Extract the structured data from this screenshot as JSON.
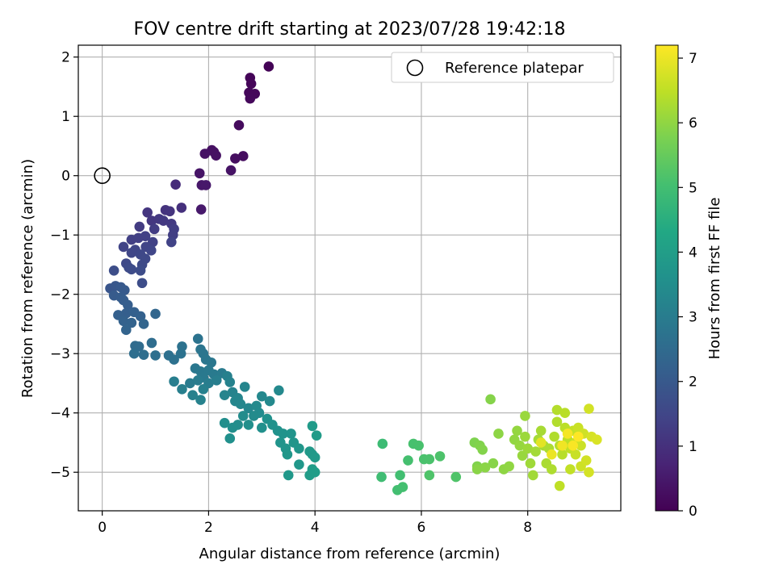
{
  "chart_data": {
    "type": "scatter",
    "title": "FOV centre drift starting at 2023/07/28 19:42:18",
    "xlabel": "Angular distance from reference (arcmin)",
    "ylabel": "Rotation from reference (arcmin)",
    "xlim": [
      -0.45,
      9.75
    ],
    "ylim": [
      -5.65,
      2.2
    ],
    "xticks": [
      0,
      2,
      4,
      6,
      8
    ],
    "yticks": [
      -5,
      -4,
      -3,
      -2,
      -1,
      0,
      1,
      2
    ],
    "grid": true,
    "legend": {
      "position": "top-right",
      "entries": [
        "Reference platepar"
      ]
    },
    "colorbar": {
      "label": "Hours from first FF file",
      "min": 0,
      "max": 7.2,
      "ticks": [
        0,
        1,
        2,
        3,
        4,
        5,
        6,
        7
      ],
      "colormap": "viridis"
    },
    "reference_point": {
      "x": 0,
      "y": 0,
      "label": "Reference platepar"
    },
    "series": [
      {
        "color_by": "hours",
        "points": [
          [
            3.13,
            1.84,
            0.05
          ],
          [
            2.78,
            1.65,
            0.08
          ],
          [
            2.8,
            1.55,
            0.1
          ],
          [
            2.76,
            1.4,
            0.12
          ],
          [
            2.87,
            1.38,
            0.13
          ],
          [
            2.78,
            1.3,
            0.15
          ],
          [
            2.57,
            0.85,
            0.2
          ],
          [
            2.65,
            0.33,
            0.25
          ],
          [
            2.5,
            0.29,
            0.27
          ],
          [
            2.06,
            0.43,
            0.3
          ],
          [
            2.1,
            0.4,
            0.32
          ],
          [
            2.14,
            0.34,
            0.33
          ],
          [
            1.93,
            0.37,
            0.35
          ],
          [
            2.42,
            0.09,
            0.38
          ],
          [
            1.83,
            0.04,
            0.4
          ],
          [
            1.87,
            -0.16,
            0.45
          ],
          [
            1.95,
            -0.16,
            0.47
          ],
          [
            1.86,
            -0.57,
            0.5
          ],
          [
            1.38,
            -0.15,
            0.9
          ],
          [
            1.49,
            -0.54,
            1.0
          ],
          [
            1.19,
            -0.58,
            1.05
          ],
          [
            1.27,
            -0.6,
            1.08
          ],
          [
            0.85,
            -0.62,
            1.1
          ],
          [
            0.93,
            -0.76,
            1.15
          ],
          [
            1.07,
            -0.73,
            1.18
          ],
          [
            1.15,
            -0.76,
            1.2
          ],
          [
            1.3,
            -0.81,
            1.22
          ],
          [
            0.7,
            -0.86,
            1.25
          ],
          [
            0.98,
            -0.9,
            1.28
          ],
          [
            1.35,
            -0.9,
            1.3
          ],
          [
            1.33,
            -1.0,
            1.32
          ],
          [
            0.68,
            -1.05,
            1.35
          ],
          [
            0.55,
            -1.08,
            1.36
          ],
          [
            0.81,
            -1.02,
            1.38
          ],
          [
            0.95,
            -1.12,
            1.4
          ],
          [
            1.3,
            -1.12,
            1.42
          ],
          [
            0.4,
            -1.2,
            1.44
          ],
          [
            0.82,
            -1.2,
            1.46
          ],
          [
            0.62,
            -1.25,
            1.48
          ],
          [
            0.92,
            -1.26,
            1.5
          ],
          [
            0.55,
            -1.3,
            1.52
          ],
          [
            0.72,
            -1.33,
            1.54
          ],
          [
            0.45,
            -1.48,
            1.56
          ],
          [
            0.81,
            -1.4,
            1.58
          ],
          [
            0.75,
            -1.5,
            1.6
          ],
          [
            0.5,
            -1.55,
            1.62
          ],
          [
            0.55,
            -1.58,
            1.64
          ],
          [
            0.72,
            -1.6,
            1.66
          ],
          [
            0.75,
            -1.81,
            1.68
          ],
          [
            0.22,
            -1.6,
            1.7
          ],
          [
            0.15,
            -1.9,
            1.9
          ],
          [
            0.25,
            -1.86,
            1.95
          ],
          [
            0.35,
            -1.88,
            2.0
          ],
          [
            0.42,
            -1.93,
            2.02
          ],
          [
            0.22,
            -2.02,
            2.05
          ],
          [
            0.35,
            -2.05,
            2.08
          ],
          [
            0.4,
            -2.1,
            2.1
          ],
          [
            0.48,
            -2.18,
            2.12
          ],
          [
            0.45,
            -2.32,
            2.15
          ],
          [
            0.3,
            -2.35,
            2.18
          ],
          [
            0.6,
            -2.3,
            2.2
          ],
          [
            0.72,
            -2.37,
            2.22
          ],
          [
            0.4,
            -2.45,
            2.25
          ],
          [
            0.55,
            -2.48,
            2.28
          ],
          [
            0.45,
            -2.6,
            2.3
          ],
          [
            0.78,
            -2.5,
            2.32
          ],
          [
            1.0,
            -2.33,
            2.35
          ],
          [
            0.62,
            -2.87,
            2.5
          ],
          [
            0.69,
            -2.88,
            2.52
          ],
          [
            0.93,
            -2.82,
            2.55
          ],
          [
            0.78,
            -3.02,
            2.58
          ],
          [
            0.6,
            -3.0,
            2.6
          ],
          [
            1.0,
            -3.03,
            2.62
          ],
          [
            1.25,
            -3.03,
            2.65
          ],
          [
            1.35,
            -3.1,
            2.68
          ],
          [
            1.5,
            -2.88,
            2.7
          ],
          [
            1.48,
            -3.0,
            2.72
          ],
          [
            1.8,
            -2.75,
            2.75
          ],
          [
            1.85,
            -2.93,
            2.78
          ],
          [
            1.9,
            -3.0,
            2.8
          ],
          [
            1.95,
            -3.1,
            2.82
          ],
          [
            2.05,
            -3.15,
            2.84
          ],
          [
            1.75,
            -3.25,
            2.86
          ],
          [
            1.85,
            -3.3,
            2.88
          ],
          [
            2.0,
            -3.28,
            2.9
          ],
          [
            1.9,
            -3.4,
            2.92
          ],
          [
            2.1,
            -3.35,
            2.94
          ],
          [
            2.25,
            -3.33,
            2.96
          ],
          [
            1.65,
            -3.5,
            2.98
          ],
          [
            1.8,
            -3.45,
            3.0
          ],
          [
            2.0,
            -3.5,
            3.02
          ],
          [
            2.15,
            -3.45,
            3.04
          ],
          [
            1.35,
            -3.47,
            3.06
          ],
          [
            1.5,
            -3.6,
            3.08
          ],
          [
            1.9,
            -3.6,
            3.1
          ],
          [
            2.35,
            -3.38,
            3.12
          ],
          [
            1.7,
            -3.7,
            3.14
          ],
          [
            1.85,
            -3.78,
            3.16
          ],
          [
            2.4,
            -3.48,
            3.18
          ],
          [
            2.45,
            -3.65,
            3.2
          ],
          [
            2.3,
            -3.7,
            3.22
          ],
          [
            2.55,
            -3.75,
            3.24
          ],
          [
            2.68,
            -3.56,
            3.26
          ],
          [
            2.5,
            -3.8,
            3.28
          ],
          [
            2.6,
            -3.85,
            3.3
          ],
          [
            2.75,
            -3.92,
            3.32
          ],
          [
            3.0,
            -3.72,
            3.34
          ],
          [
            3.15,
            -3.8,
            3.36
          ],
          [
            3.32,
            -3.62,
            3.38
          ],
          [
            2.9,
            -3.88,
            3.4
          ],
          [
            2.95,
            -4.0,
            3.42
          ],
          [
            2.85,
            -4.05,
            3.44
          ],
          [
            2.65,
            -4.05,
            3.46
          ],
          [
            2.55,
            -4.2,
            3.48
          ],
          [
            2.3,
            -4.17,
            3.5
          ],
          [
            2.45,
            -4.25,
            3.52
          ],
          [
            2.75,
            -4.2,
            3.54
          ],
          [
            3.0,
            -4.25,
            3.56
          ],
          [
            2.4,
            -4.43,
            3.58
          ],
          [
            3.1,
            -4.1,
            3.6
          ],
          [
            3.2,
            -4.2,
            3.62
          ],
          [
            3.3,
            -4.3,
            3.64
          ],
          [
            3.4,
            -4.35,
            3.66
          ],
          [
            3.35,
            -4.5,
            3.68
          ],
          [
            3.55,
            -4.35,
            3.7
          ],
          [
            3.45,
            -4.6,
            3.72
          ],
          [
            3.6,
            -4.5,
            3.74
          ],
          [
            3.7,
            -4.6,
            3.76
          ],
          [
            3.48,
            -4.7,
            3.78
          ],
          [
            3.7,
            -4.87,
            3.8
          ],
          [
            3.5,
            -5.05,
            3.82
          ],
          [
            3.9,
            -4.65,
            3.84
          ],
          [
            3.95,
            -4.7,
            3.86
          ],
          [
            4.0,
            -4.75,
            3.88
          ],
          [
            3.95,
            -4.22,
            3.9
          ],
          [
            4.03,
            -4.38,
            3.92
          ],
          [
            3.95,
            -4.95,
            3.94
          ],
          [
            3.9,
            -5.05,
            3.96
          ],
          [
            4.0,
            -5.0,
            3.98
          ],
          [
            5.27,
            -4.52,
            4.9
          ],
          [
            5.25,
            -5.08,
            4.95
          ],
          [
            5.6,
            -5.05,
            5.0
          ],
          [
            5.55,
            -5.3,
            5.02
          ],
          [
            5.65,
            -5.25,
            5.04
          ],
          [
            5.75,
            -4.8,
            5.06
          ],
          [
            5.85,
            -4.52,
            5.08
          ],
          [
            5.95,
            -4.55,
            5.1
          ],
          [
            6.05,
            -4.78,
            5.12
          ],
          [
            6.15,
            -4.78,
            5.14
          ],
          [
            6.35,
            -4.73,
            5.16
          ],
          [
            6.15,
            -5.05,
            5.18
          ],
          [
            6.65,
            -5.08,
            5.2
          ],
          [
            7.0,
            -4.5,
            5.8
          ],
          [
            7.05,
            -4.9,
            5.82
          ],
          [
            7.1,
            -4.55,
            5.84
          ],
          [
            7.15,
            -4.62,
            5.86
          ],
          [
            7.3,
            -3.77,
            5.88
          ],
          [
            7.35,
            -4.85,
            5.9
          ],
          [
            7.05,
            -4.95,
            5.92
          ],
          [
            7.2,
            -4.92,
            5.94
          ],
          [
            7.45,
            -4.35,
            5.96
          ],
          [
            7.55,
            -4.95,
            5.98
          ],
          [
            7.65,
            -4.9,
            6.0
          ],
          [
            7.75,
            -4.45,
            6.02
          ],
          [
            7.8,
            -4.3,
            6.04
          ],
          [
            7.85,
            -4.55,
            6.06
          ],
          [
            7.9,
            -4.72,
            6.08
          ],
          [
            7.95,
            -4.05,
            6.1
          ],
          [
            7.95,
            -4.4,
            6.12
          ],
          [
            8.0,
            -4.6,
            6.14
          ],
          [
            8.05,
            -4.85,
            6.16
          ],
          [
            8.1,
            -5.05,
            6.18
          ],
          [
            8.15,
            -4.65,
            6.2
          ],
          [
            8.2,
            -4.45,
            6.22
          ],
          [
            8.25,
            -4.3,
            6.24
          ],
          [
            8.3,
            -4.55,
            6.26
          ],
          [
            8.35,
            -4.85,
            6.28
          ],
          [
            8.4,
            -4.6,
            6.3
          ],
          [
            8.45,
            -4.95,
            6.32
          ],
          [
            8.5,
            -4.4,
            6.34
          ],
          [
            8.55,
            -4.15,
            6.36
          ],
          [
            8.55,
            -3.95,
            6.38
          ],
          [
            8.6,
            -4.55,
            6.4
          ],
          [
            8.65,
            -4.7,
            6.42
          ],
          [
            8.7,
            -4.0,
            6.44
          ],
          [
            8.7,
            -4.25,
            6.46
          ],
          [
            8.75,
            -4.45,
            6.48
          ],
          [
            8.6,
            -5.23,
            6.5
          ],
          [
            8.8,
            -4.6,
            6.52
          ],
          [
            8.8,
            -4.95,
            6.54
          ],
          [
            8.85,
            -4.3,
            6.56
          ],
          [
            8.9,
            -4.5,
            6.58
          ],
          [
            8.9,
            -4.7,
            6.6
          ],
          [
            8.95,
            -4.25,
            6.62
          ],
          [
            9.0,
            -4.55,
            6.64
          ],
          [
            9.0,
            -4.9,
            6.66
          ],
          [
            9.05,
            -4.35,
            6.68
          ],
          [
            9.1,
            -4.8,
            6.7
          ],
          [
            9.15,
            -3.93,
            6.72
          ],
          [
            9.15,
            -5.0,
            6.74
          ],
          [
            9.2,
            -4.4,
            6.76
          ],
          [
            9.3,
            -4.45,
            6.8
          ],
          [
            8.25,
            -4.5,
            6.9
          ],
          [
            8.45,
            -4.7,
            7.0
          ],
          [
            8.65,
            -4.55,
            7.05
          ],
          [
            8.75,
            -4.35,
            7.1
          ],
          [
            8.85,
            -4.55,
            7.15
          ],
          [
            8.95,
            -4.4,
            7.2
          ]
        ]
      }
    ]
  }
}
